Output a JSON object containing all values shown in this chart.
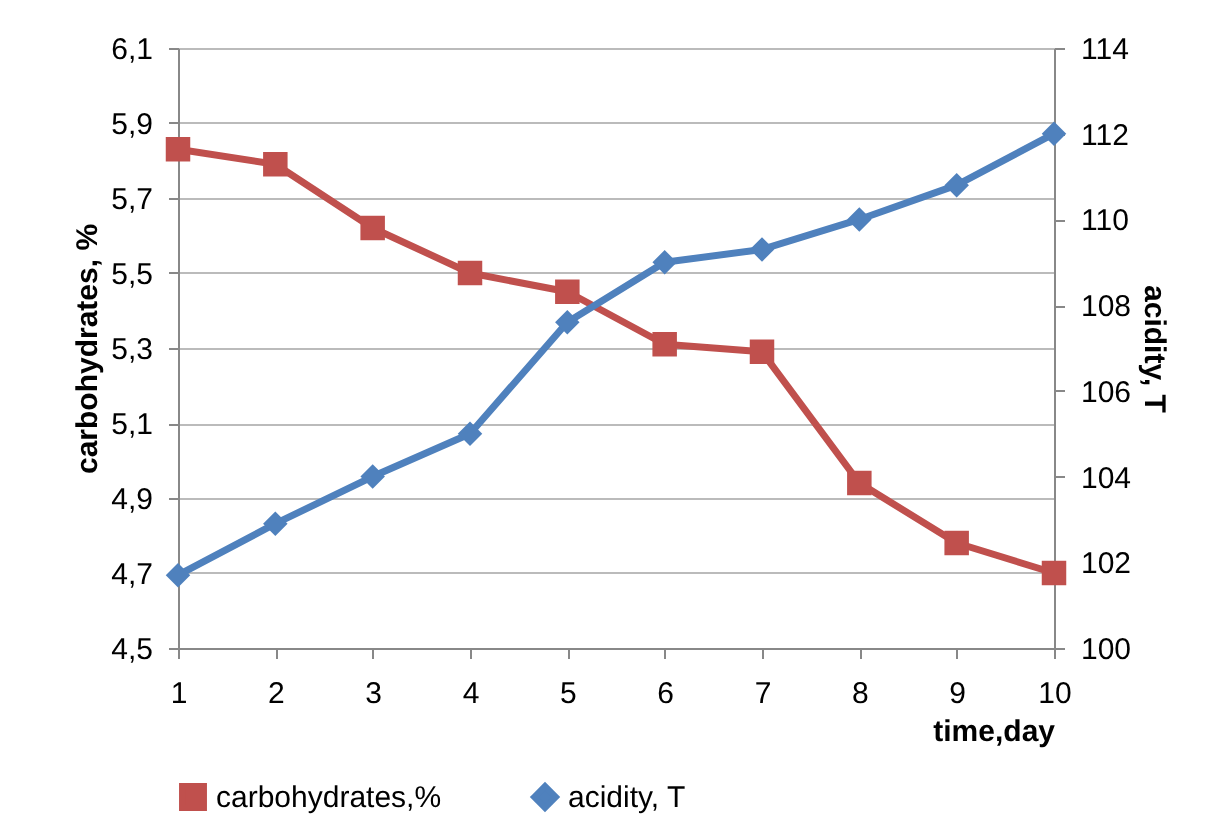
{
  "chart_data": {
    "type": "line",
    "xlabel": "time,day",
    "ylabel": "carbohydrates, %",
    "y2label": "acidity, T",
    "x": [
      1,
      2,
      3,
      4,
      5,
      6,
      7,
      8,
      9,
      10
    ],
    "series": [
      {
        "name": "carbohydrates,%",
        "color": "#c0504d",
        "marker": "square",
        "values": [
          5.83,
          5.79,
          5.62,
          5.5,
          5.45,
          5.31,
          5.29,
          4.94,
          4.78,
          4.7
        ]
      },
      {
        "name": "acidity, T",
        "color": "#4f81bd",
        "marker": "diamond",
        "axis": "y2",
        "values": [
          101.7,
          102.9,
          104.0,
          105.0,
          107.6,
          109.0,
          109.3,
          110.0,
          110.8,
          112.0
        ]
      }
    ],
    "xlim": [
      1,
      10
    ],
    "xticks": [
      1,
      2,
      3,
      4,
      5,
      6,
      7,
      8,
      9,
      10
    ],
    "ylim": [
      4.5,
      6.1
    ],
    "yticks": [
      {
        "value": 4.5,
        "label": "4,5"
      },
      {
        "value": 4.7,
        "label": "4,7"
      },
      {
        "value": 4.9,
        "label": "4,9"
      },
      {
        "value": 5.1,
        "label": "5,1"
      },
      {
        "value": 5.3,
        "label": "5,3"
      },
      {
        "value": 5.5,
        "label": "5,5"
      },
      {
        "value": 5.7,
        "label": "5,7"
      },
      {
        "value": 5.9,
        "label": "5,9"
      },
      {
        "value": 6.1,
        "label": "6,1"
      }
    ],
    "y2lim": [
      100,
      114
    ],
    "y2ticks": [
      100,
      102,
      104,
      106,
      108,
      110,
      112,
      114
    ],
    "grid": "y",
    "legend": "bottom",
    "line_style": "solid"
  }
}
